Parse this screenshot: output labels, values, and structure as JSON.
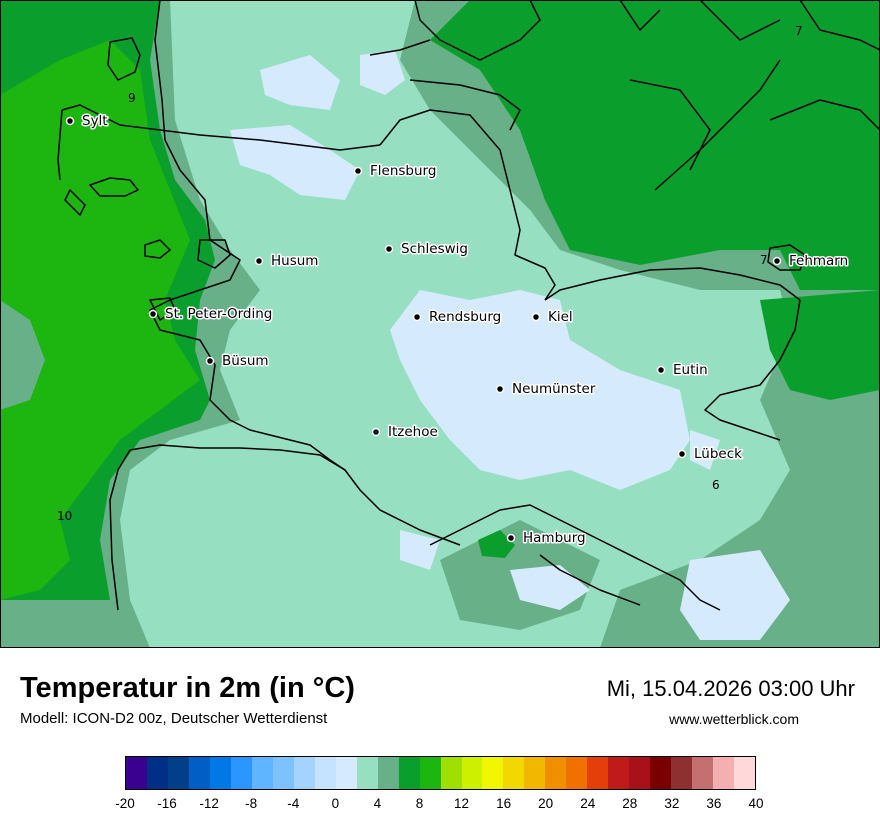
{
  "header": {
    "title": "Temperatur in 2m (in °C)",
    "model": "Modell: ICON-D2 00z, Deutscher Wetterdienst",
    "datetime": "Mi, 15.04.2026 03:00 Uhr",
    "website": "www.wetterblick.com"
  },
  "map": {
    "cities": [
      {
        "name": "Sylt"
      },
      {
        "name": "Flensburg"
      },
      {
        "name": "Schleswig"
      },
      {
        "name": "Husum"
      },
      {
        "name": "St. Peter-Ording"
      },
      {
        "name": "Rendsburg"
      },
      {
        "name": "Kiel"
      },
      {
        "name": "Fehmarn"
      },
      {
        "name": "Büsum"
      },
      {
        "name": "Neumünster"
      },
      {
        "name": "Eutin"
      },
      {
        "name": "Itzehoe"
      },
      {
        "name": "Lübeck"
      },
      {
        "name": "Hamburg"
      }
    ],
    "isoline_labels": [
      "9",
      "7",
      "7",
      "10",
      "6"
    ],
    "field_colors": {
      "t10": "#1db510",
      "t8": "#0a9e2c",
      "t6": "#67b088",
      "t4": "#96dfc1",
      "t2": "#d6eafe"
    }
  },
  "legend": {
    "colors": [
      "#3a0090",
      "#002f87",
      "#003f8a",
      "#005ec4",
      "#0078e5",
      "#2b96ff",
      "#5fb5ff",
      "#7ec1ff",
      "#a4d3ff",
      "#c5e3ff",
      "#d6eafe",
      "#96dfc1",
      "#67b088",
      "#0a9e2c",
      "#1db510",
      "#a0e000",
      "#ccf000",
      "#f0f500",
      "#f0d800",
      "#f0b800",
      "#f09000",
      "#f07000",
      "#e43f0a",
      "#c01a1a",
      "#a8101a",
      "#7a0000",
      "#8e3030",
      "#c47070",
      "#f4b0b0",
      "#ffd9d9"
    ],
    "labels": [
      "-20",
      "-16",
      "-12",
      "-8",
      "-4",
      "0",
      "4",
      "8",
      "12",
      "16",
      "20",
      "24",
      "28",
      "32",
      "36",
      "40"
    ]
  }
}
